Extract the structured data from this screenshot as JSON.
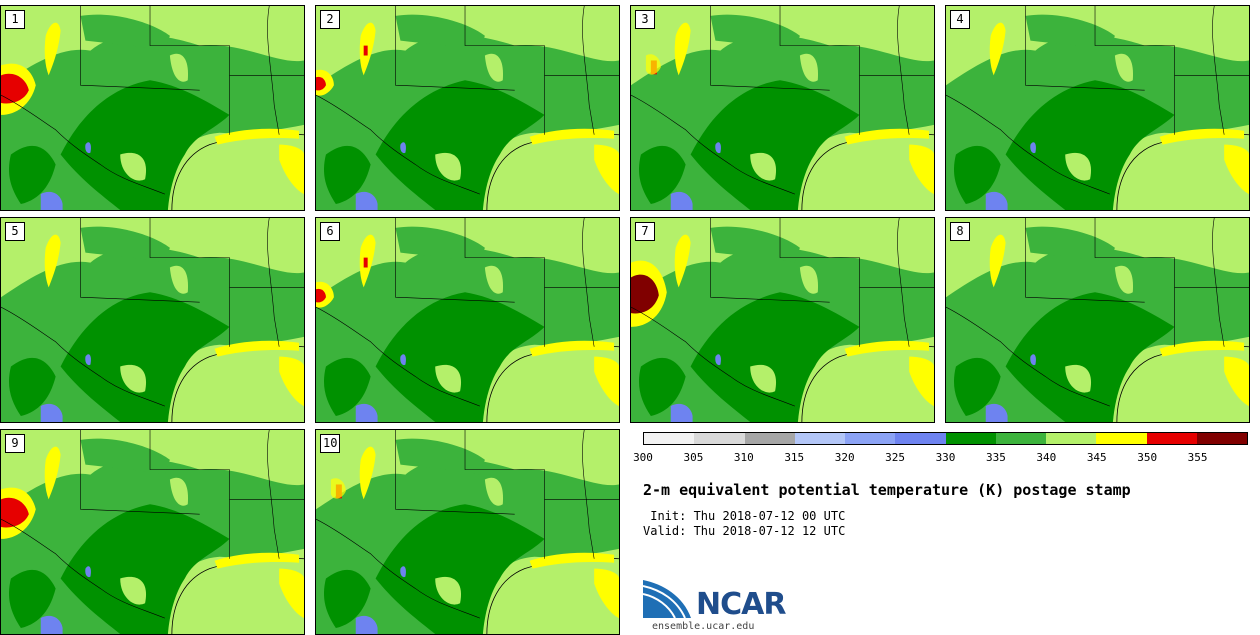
{
  "panels": [
    {
      "number": "1",
      "hot": "big-left"
    },
    {
      "number": "2",
      "hot": "small-left"
    },
    {
      "number": "3",
      "hot": "spot"
    },
    {
      "number": "4",
      "hot": "none"
    },
    {
      "number": "5",
      "hot": "none"
    },
    {
      "number": "6",
      "hot": "small-left"
    },
    {
      "number": "7",
      "hot": "big-dark"
    },
    {
      "number": "8",
      "hot": "none"
    },
    {
      "number": "9",
      "hot": "big-left"
    },
    {
      "number": "10",
      "hot": "spot"
    }
  ],
  "colorbar": {
    "colors": [
      "#f2f2f2",
      "#d9d9d9",
      "#a6a6a6",
      "#b3c6f7",
      "#8ca3f5",
      "#6e83f0",
      "#009100",
      "#3cb33c",
      "#b4f06a",
      "#ffff00",
      "#e60000",
      "#800000"
    ],
    "ticks": [
      "300",
      "305",
      "310",
      "315",
      "320",
      "325",
      "330",
      "335",
      "340",
      "345",
      "350",
      "355"
    ]
  },
  "title": "2-m equivalent potential temperature (K) postage stamp",
  "init": " Init: Thu 2018-07-12 00 UTC",
  "valid": "Valid: Thu 2018-07-12 12 UTC",
  "logo": {
    "text": "NCAR",
    "url": "ensemble.ucar.edu"
  }
}
